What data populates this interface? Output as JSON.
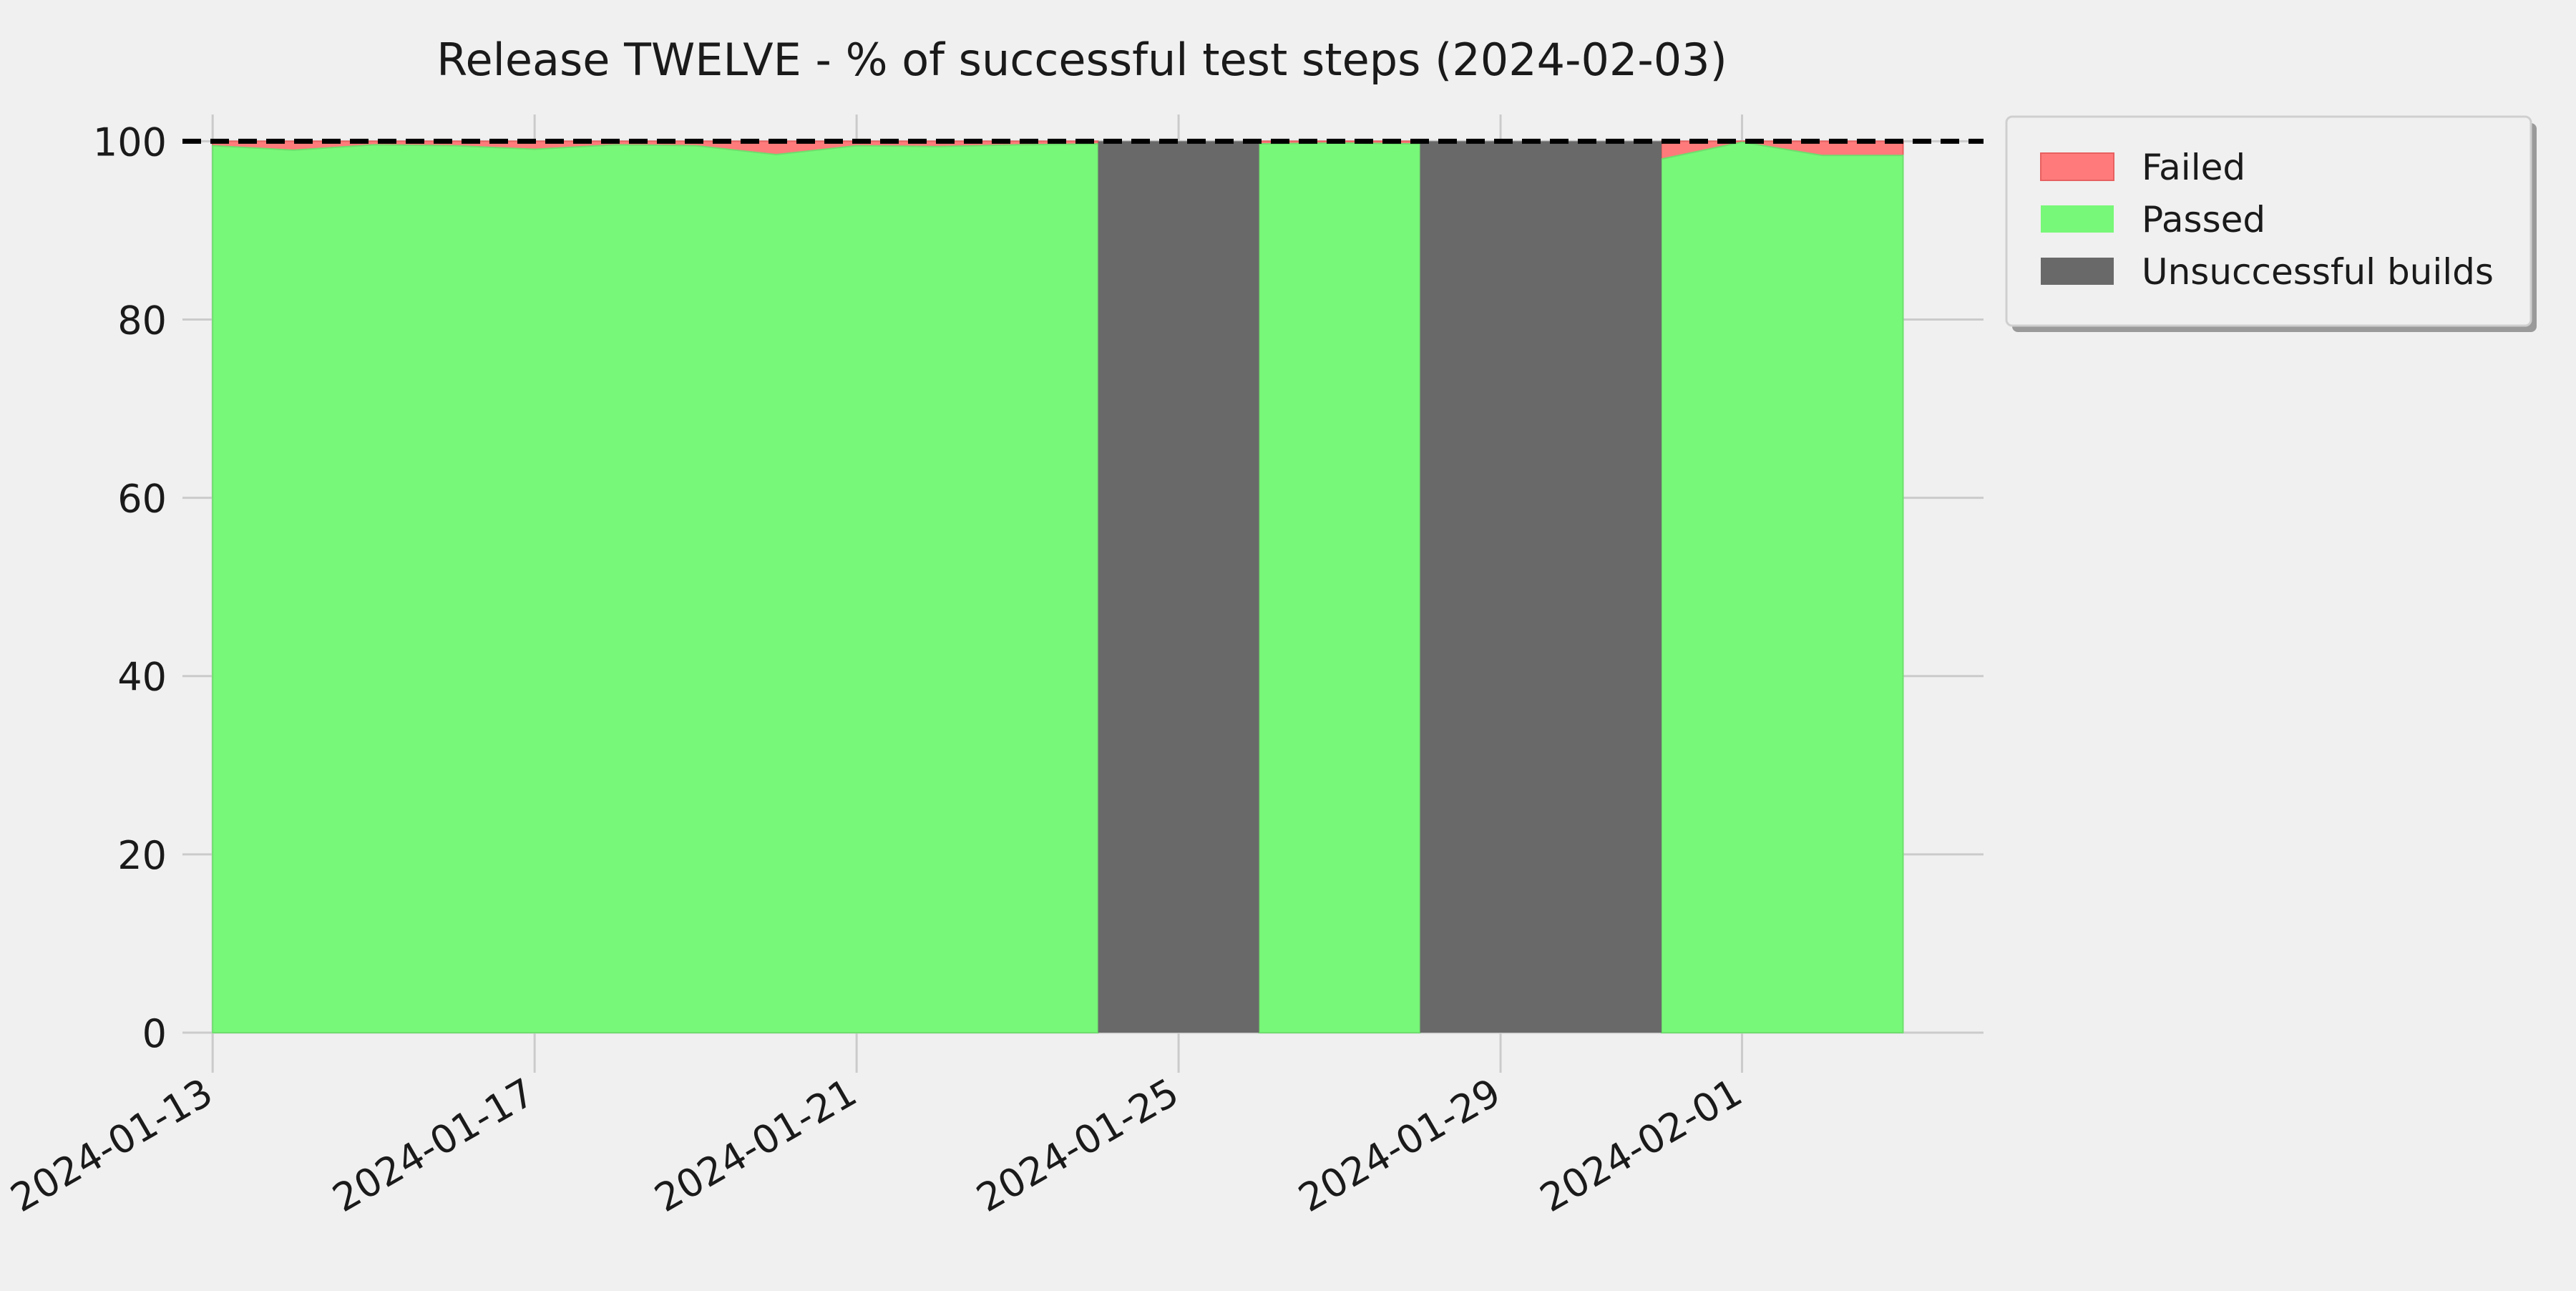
{
  "chart_data": {
    "type": "area",
    "title": "Release TWELVE - % of successful test steps (2024-02-03)",
    "xlabel": "",
    "ylabel": "",
    "ylim": [
      0,
      103
    ],
    "xlim": [
      "2024-01-12T15:00",
      "2024-02-04T00:00"
    ],
    "yticks": [
      0,
      20,
      40,
      60,
      80,
      100
    ],
    "xticks": [
      "2024-01-13",
      "2024-01-17",
      "2024-01-21",
      "2024-01-25",
      "2024-01-29",
      "2024-02-01"
    ],
    "grid": true,
    "legend_position": "upper-right-outside",
    "reference_line": {
      "y": 100,
      "style": "dashed",
      "color": "#000000"
    },
    "colors": {
      "failed": "#ff7b7b",
      "passed": "#78f878",
      "unsuccessful": "#696969",
      "background": "#f0f0f0",
      "grid": "#cbcbcb"
    },
    "x": [
      "2024-01-13",
      "2024-01-14",
      "2024-01-15",
      "2024-01-16",
      "2024-01-17",
      "2024-01-18",
      "2024-01-19",
      "2024-01-20",
      "2024-01-21",
      "2024-01-22",
      "2024-01-23",
      "2024-01-24",
      "2024-01-26",
      "2024-01-27",
      "2024-01-28",
      "2024-01-31",
      "2024-02-01",
      "2024-02-02",
      "2024-02-03"
    ],
    "series": [
      {
        "name": "Passed",
        "values": [
          99.5,
          99.0,
          99.6,
          99.5,
          99.1,
          99.6,
          99.5,
          98.5,
          99.5,
          99.4,
          99.6,
          99.7,
          99.7,
          99.8,
          99.7,
          98.0,
          99.9,
          98.4,
          98.4
        ]
      },
      {
        "name": "Failed",
        "values": [
          0.5,
          1.0,
          0.4,
          0.5,
          0.9,
          0.4,
          0.5,
          1.5,
          0.5,
          0.6,
          0.4,
          0.3,
          0.3,
          0.2,
          0.3,
          2.0,
          0.1,
          1.6,
          1.6
        ]
      },
      {
        "name": "Unsuccessful builds",
        "ranges": [
          [
            "2024-01-24",
            "2024-01-26"
          ],
          [
            "2024-01-28",
            "2024-01-31"
          ]
        ]
      }
    ],
    "legend": [
      "Failed",
      "Passed",
      "Unsuccessful builds"
    ]
  }
}
